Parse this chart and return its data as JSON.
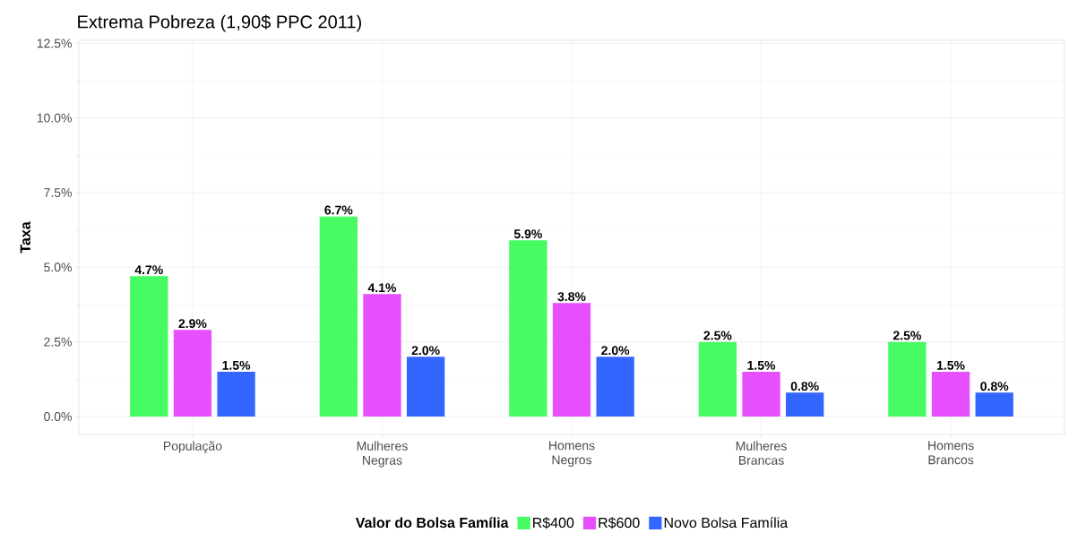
{
  "chart_data": {
    "type": "bar",
    "title": "Extrema Pobreza (1,90$ PPC 2011)",
    "ylabel": "Taxa",
    "legend_title": "Valor do Bolsa Família",
    "categories": [
      "População",
      "Mulheres Negras",
      "Homens Negros",
      "Mulheres Brancas",
      "Homens Brancos"
    ],
    "series": [
      {
        "name": "R$400",
        "color": "#47fc62",
        "values": [
          4.7,
          6.7,
          5.9,
          2.5,
          2.5
        ],
        "value_labels": [
          "4.7%",
          "6.7%",
          "5.9%",
          "2.5%",
          "2.5%"
        ]
      },
      {
        "name": "R$600",
        "color": "#e64ffc",
        "values": [
          2.9,
          4.1,
          3.8,
          1.5,
          1.5
        ],
        "value_labels": [
          "2.9%",
          "4.1%",
          "3.8%",
          "1.5%",
          "1.5%"
        ]
      },
      {
        "name": "Novo Bolsa Família",
        "color": "#3366ff",
        "values": [
          1.5,
          2.0,
          2.0,
          0.8,
          0.8
        ],
        "value_labels": [
          "1.5%",
          "2.0%",
          "2.0%",
          "0.8%",
          "0.8%"
        ]
      }
    ],
    "ylim": [
      -0.6,
      12.6
    ],
    "yticks": [
      {
        "value": 0,
        "label": "0.0%"
      },
      {
        "value": 2.5,
        "label": "2.5%"
      },
      {
        "value": 5,
        "label": "5.0%"
      },
      {
        "value": 7.5,
        "label": "7.5%"
      },
      {
        "value": 10,
        "label": "10.0%"
      },
      {
        "value": 12.5,
        "label": "12.5%"
      }
    ],
    "grid": true,
    "legend": "bottom"
  }
}
